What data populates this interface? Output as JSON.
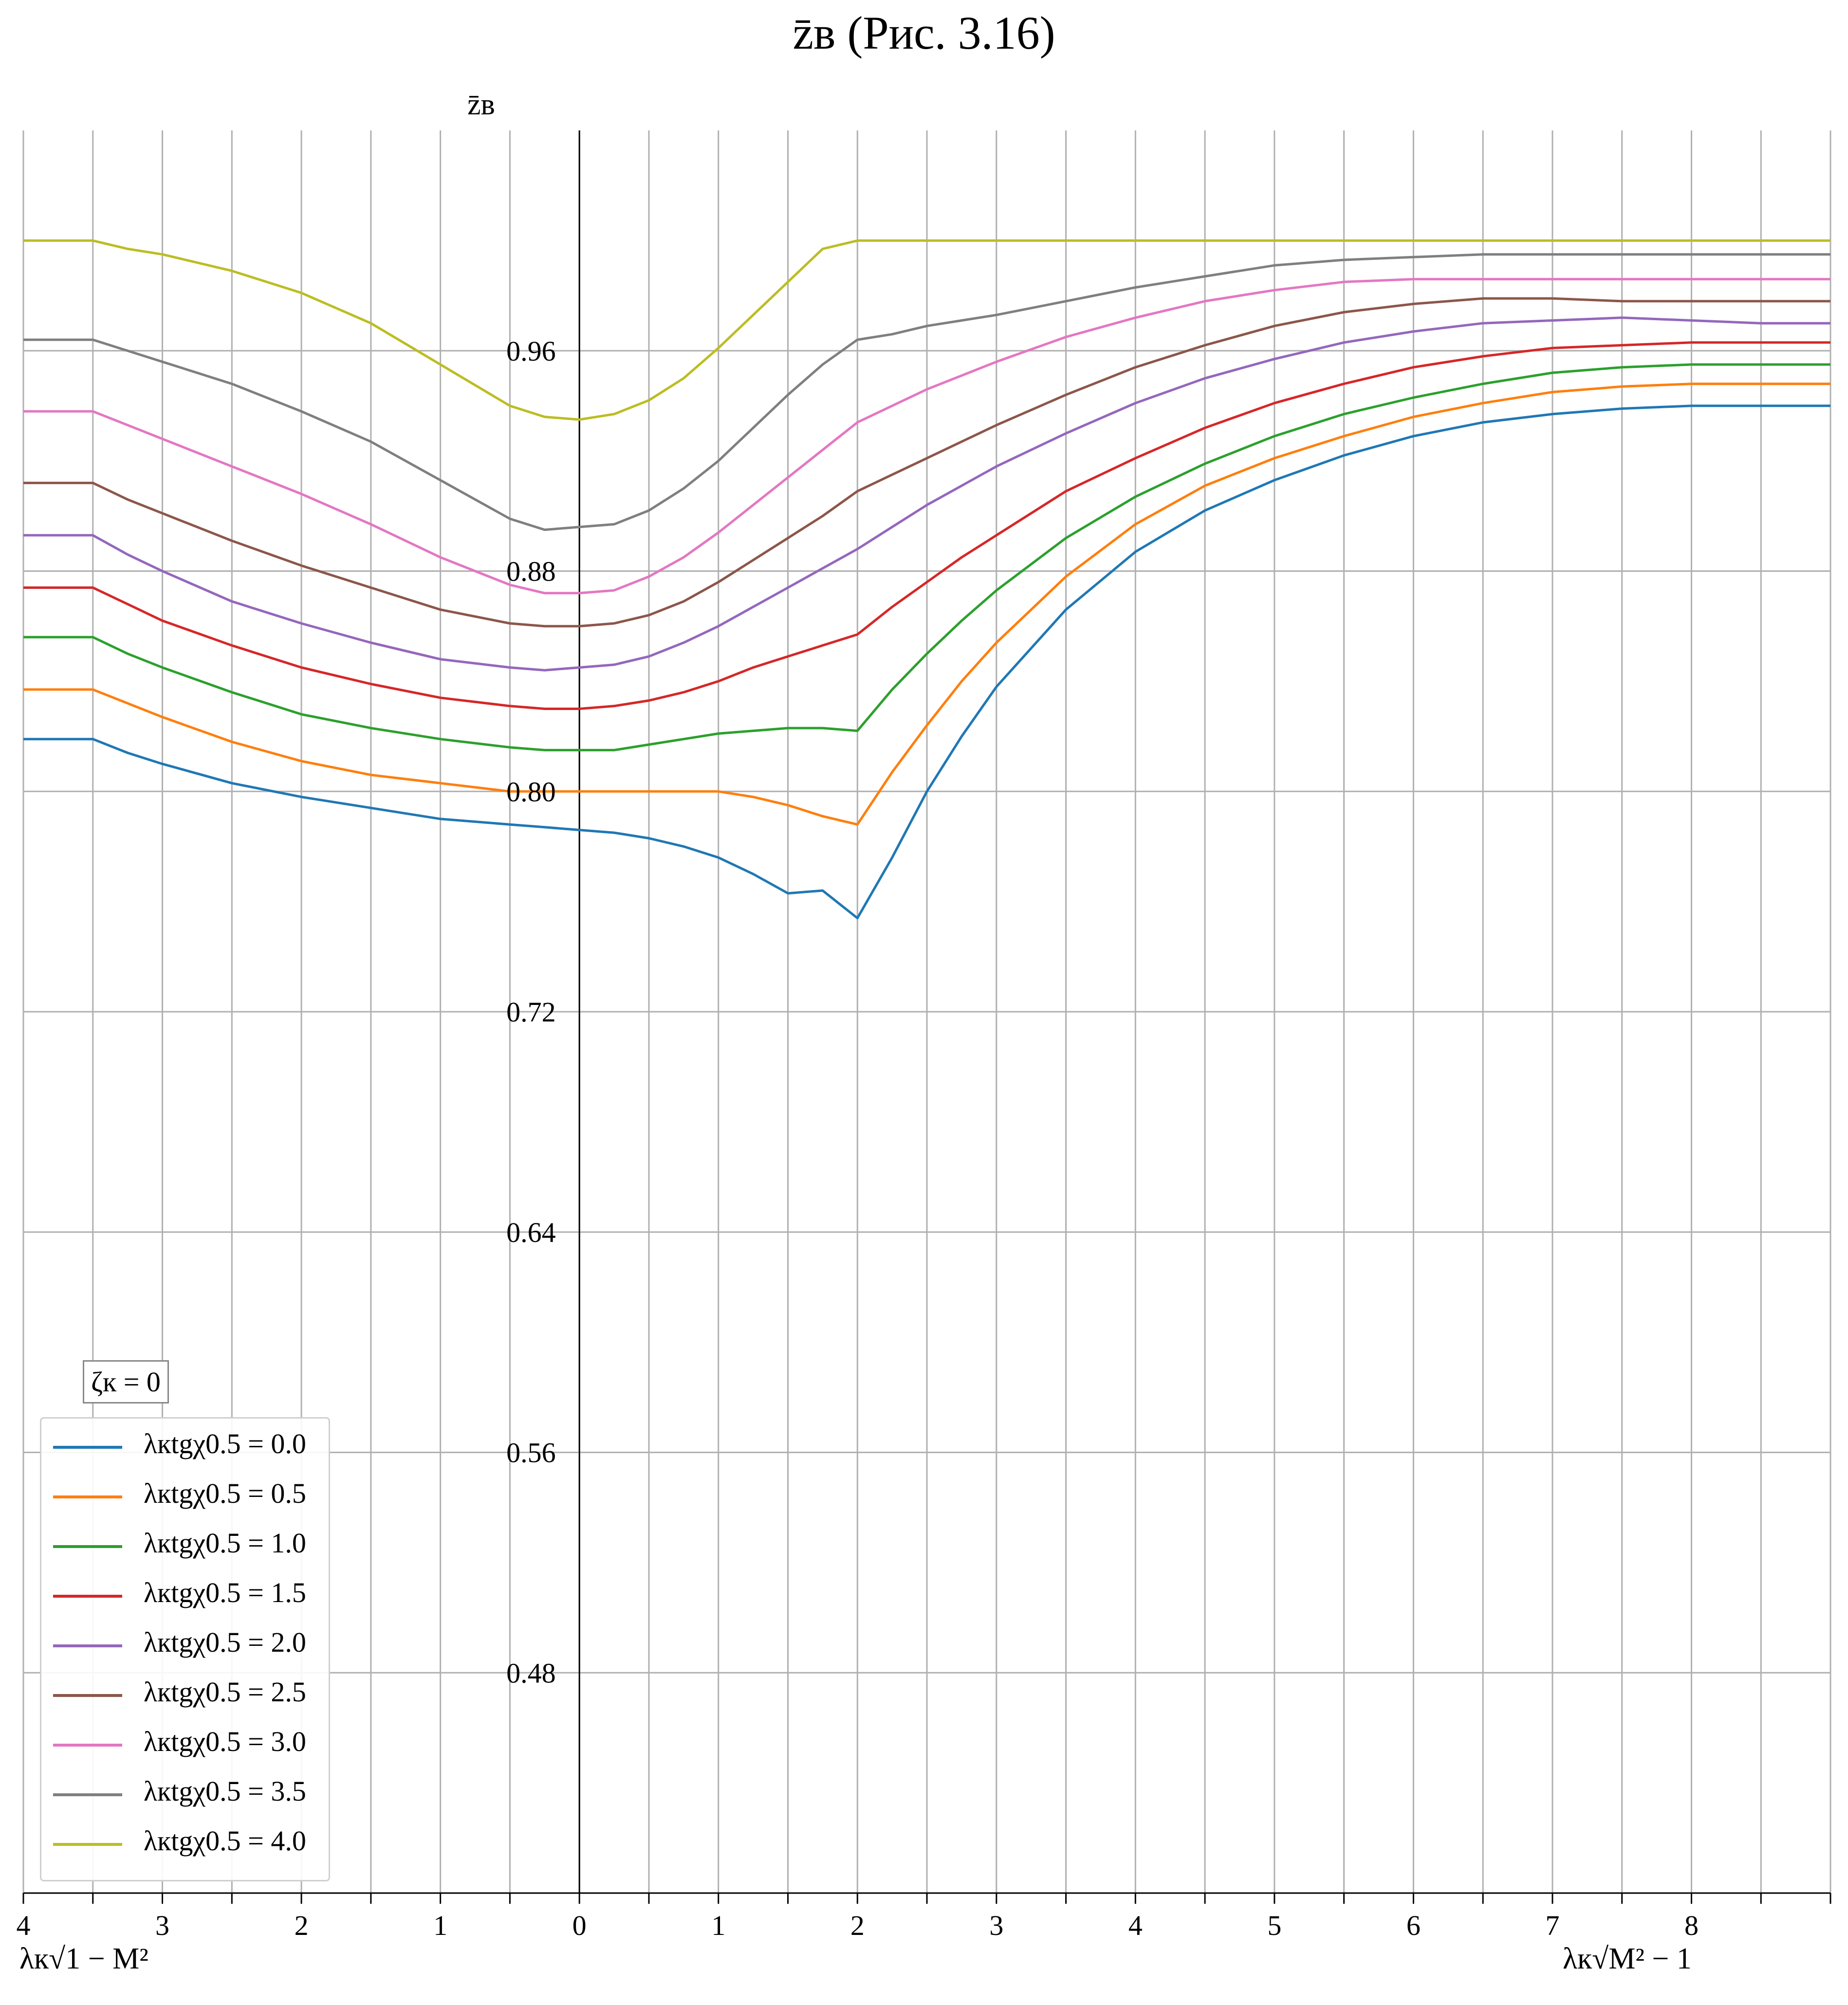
{
  "title": "z̄в (Рис. 3.16)",
  "y_axis_label": "z̄в",
  "x_label_left": "λк√1 − M²",
  "x_label_right": "λк√M² − 1",
  "legend_title": "ζк = 0",
  "chart_data": {
    "type": "line",
    "title": "z̄в (Рис. 3.16)",
    "ylabel": "z̄в",
    "xlabel_left": "λк√1 − M²",
    "xlabel_right": "λк√M² − 1",
    "x_axis_note": "left part: subsonic, value λк√(1−M²) decreases from 4 to 0 toward center; right part: supersonic, value λк√(M²−1) from 0 to 9",
    "x_ticks_left": [
      "4",
      "3",
      "2",
      "1",
      "0"
    ],
    "x_ticks_right": [
      "1",
      "2",
      "3",
      "4",
      "5",
      "6",
      "7",
      "8"
    ],
    "y_ticks": [
      "0.48",
      "0.56",
      "0.64",
      "0.72",
      "0.80",
      "0.88",
      "0.96"
    ],
    "ylim": [
      0.4,
      1.04
    ],
    "grid": true,
    "legend_position": "lower-left",
    "x_pos": [
      -4.0,
      -3.5,
      -3.25,
      -3.0,
      -2.5,
      -2.0,
      -1.5,
      -1.0,
      -0.5,
      -0.25,
      0.0,
      0.25,
      0.5,
      0.75,
      1.0,
      1.25,
      1.5,
      1.75,
      2.0,
      2.25,
      2.5,
      2.75,
      3.0,
      3.5,
      4.0,
      4.5,
      5.0,
      5.5,
      6.0,
      6.5,
      7.0,
      7.5,
      8.0,
      8.5,
      9.0
    ],
    "series": [
      {
        "name": "λкtgχ0.5 = 0.0",
        "color": "#1f77b4",
        "values": [
          0.819,
          0.819,
          0.814,
          0.81,
          0.803,
          0.798,
          0.794,
          0.79,
          0.788,
          0.787,
          0.786,
          0.785,
          0.783,
          0.78,
          0.776,
          0.77,
          0.763,
          0.764,
          0.754,
          0.776,
          0.8,
          0.82,
          0.838,
          0.866,
          0.887,
          0.902,
          0.913,
          0.922,
          0.929,
          0.934,
          0.937,
          0.939,
          0.94,
          0.94,
          0.94
        ]
      },
      {
        "name": "λкtgχ0.5 = 0.5",
        "color": "#ff7f0e",
        "values": [
          0.837,
          0.837,
          0.832,
          0.827,
          0.818,
          0.811,
          0.806,
          0.803,
          0.8,
          0.8,
          0.8,
          0.8,
          0.8,
          0.8,
          0.8,
          0.798,
          0.795,
          0.791,
          0.788,
          0.807,
          0.824,
          0.84,
          0.854,
          0.878,
          0.897,
          0.911,
          0.921,
          0.929,
          0.936,
          0.941,
          0.945,
          0.947,
          0.948,
          0.948,
          0.948
        ]
      },
      {
        "name": "λкtgχ0.5 = 1.0",
        "color": "#2ca02c",
        "values": [
          0.856,
          0.856,
          0.85,
          0.845,
          0.836,
          0.828,
          0.823,
          0.819,
          0.816,
          0.815,
          0.815,
          0.815,
          0.817,
          0.819,
          0.821,
          0.822,
          0.823,
          0.823,
          0.822,
          0.837,
          0.85,
          0.862,
          0.873,
          0.892,
          0.907,
          0.919,
          0.929,
          0.937,
          0.943,
          0.948,
          0.952,
          0.954,
          0.955,
          0.955,
          0.955
        ]
      },
      {
        "name": "λкtgχ0.5 = 1.5",
        "color": "#d62728",
        "values": [
          0.874,
          0.874,
          0.868,
          0.862,
          0.853,
          0.845,
          0.839,
          0.834,
          0.831,
          0.83,
          0.83,
          0.831,
          0.833,
          0.836,
          0.84,
          0.845,
          0.849,
          0.853,
          0.857,
          0.867,
          0.876,
          0.885,
          0.893,
          0.909,
          0.921,
          0.932,
          0.941,
          0.948,
          0.954,
          0.958,
          0.961,
          0.962,
          0.963,
          0.963,
          0.963
        ]
      },
      {
        "name": "λкtgχ0.5 = 2.0",
        "color": "#9467bd",
        "values": [
          0.893,
          0.893,
          0.886,
          0.88,
          0.869,
          0.861,
          0.854,
          0.848,
          0.845,
          0.844,
          0.845,
          0.846,
          0.849,
          0.854,
          0.86,
          0.867,
          0.874,
          0.881,
          0.888,
          0.896,
          0.904,
          0.911,
          0.918,
          0.93,
          0.941,
          0.95,
          0.957,
          0.963,
          0.967,
          0.97,
          0.971,
          0.972,
          0.971,
          0.97,
          0.97
        ]
      },
      {
        "name": "λкtgχ0.5 = 2.5",
        "color": "#8c564b",
        "values": [
          0.912,
          0.912,
          0.906,
          0.901,
          0.891,
          0.882,
          0.874,
          0.866,
          0.861,
          0.86,
          0.86,
          0.861,
          0.864,
          0.869,
          0.876,
          0.884,
          0.892,
          0.9,
          0.909,
          0.915,
          0.921,
          0.927,
          0.933,
          0.944,
          0.954,
          0.962,
          0.969,
          0.974,
          0.977,
          0.979,
          0.979,
          0.978,
          0.978,
          0.978,
          0.978
        ]
      },
      {
        "name": "λкtgχ0.5 = 3.0",
        "color": "#e377c2",
        "values": [
          0.938,
          0.938,
          0.933,
          0.928,
          0.918,
          0.908,
          0.897,
          0.885,
          0.875,
          0.872,
          0.872,
          0.873,
          0.878,
          0.885,
          0.894,
          0.904,
          0.914,
          0.924,
          0.934,
          0.94,
          0.946,
          0.951,
          0.956,
          0.965,
          0.972,
          0.978,
          0.982,
          0.985,
          0.986,
          0.986,
          0.986,
          0.986,
          0.986,
          0.986,
          0.986
        ]
      },
      {
        "name": "λкtgχ0.5 = 3.5",
        "color": "#7f7f7f",
        "values": [
          0.964,
          0.964,
          0.96,
          0.956,
          0.948,
          0.938,
          0.927,
          0.913,
          0.899,
          0.895,
          0.896,
          0.897,
          0.902,
          0.91,
          0.92,
          0.932,
          0.944,
          0.955,
          0.964,
          0.966,
          0.969,
          0.971,
          0.973,
          0.978,
          0.983,
          0.987,
          0.991,
          0.993,
          0.994,
          0.995,
          0.995,
          0.995,
          0.995,
          0.995,
          0.995
        ]
      },
      {
        "name": "λкtgχ0.5 = 4.0",
        "color": "#bcbd22",
        "values": [
          1.0,
          1.0,
          0.997,
          0.995,
          0.989,
          0.981,
          0.97,
          0.955,
          0.94,
          0.936,
          0.935,
          0.937,
          0.942,
          0.95,
          0.961,
          0.973,
          0.985,
          0.997,
          1.0,
          1.0,
          1.0,
          1.0,
          1.0,
          1.0,
          1.0,
          1.0,
          1.0,
          1.0,
          1.0,
          1.0,
          1.0,
          1.0,
          1.0,
          1.0,
          1.0
        ]
      }
    ]
  }
}
